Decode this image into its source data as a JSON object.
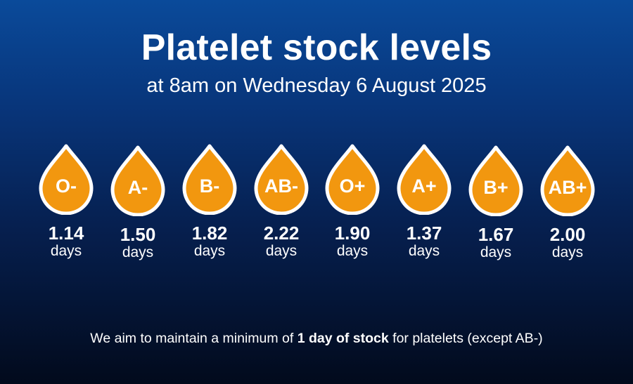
{
  "header": {
    "title": "Platelet stock levels",
    "subtitle": "at 8am on Wednesday 6 August 2025"
  },
  "colors": {
    "drop_fill": "#f2970f",
    "drop_outline": "#ffffff"
  },
  "stock": [
    {
      "group": "O-",
      "value": "1.14",
      "unit": "days"
    },
    {
      "group": "A-",
      "value": "1.50",
      "unit": "days"
    },
    {
      "group": "B-",
      "value": "1.82",
      "unit": "days"
    },
    {
      "group": "AB-",
      "value": "2.22",
      "unit": "days"
    },
    {
      "group": "O+",
      "value": "1.90",
      "unit": "days"
    },
    {
      "group": "A+",
      "value": "1.37",
      "unit": "days"
    },
    {
      "group": "B+",
      "value": "1.67",
      "unit": "days"
    },
    {
      "group": "AB+",
      "value": "2.00",
      "unit": "days"
    }
  ],
  "footnote": {
    "before": "We aim to maintain a minimum of ",
    "emphasis": "1 day of stock",
    "after": " for platelets (except AB-)"
  }
}
